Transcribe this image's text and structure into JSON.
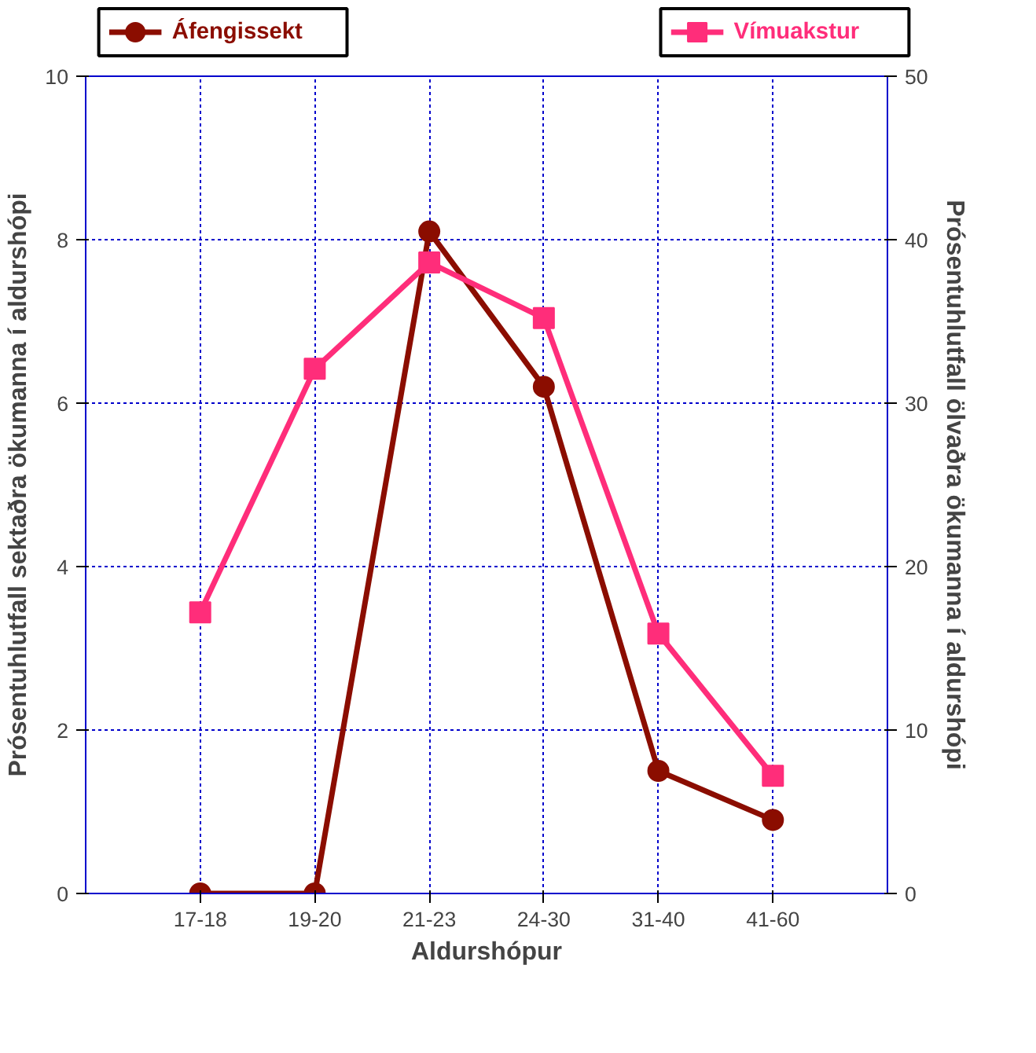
{
  "chart_data": {
    "type": "line",
    "categories": [
      "17-18",
      "19-20",
      "21-23",
      "24-30",
      "31-40",
      "41-60"
    ],
    "xlabel": "Aldurshópur",
    "ylabel": "Prósentuhlutfall sektaðra ökumanna í aldurshópi",
    "y2label": "Prósentuhlutfall ölvaðra ökumanna í aldurshópi",
    "ylim": [
      0,
      10
    ],
    "yticks": [
      0,
      2,
      4,
      6,
      8,
      10
    ],
    "y2lim": [
      0,
      50
    ],
    "y2ticks": [
      0,
      10,
      20,
      30,
      40,
      50
    ],
    "grid": true,
    "legend": "top",
    "line_style": "solid",
    "series": [
      {
        "name": "Áfengissekt",
        "color": "#8b0d00",
        "marker": "circle",
        "values": [
          0,
          0,
          8.1,
          6.2,
          1.5,
          0.9
        ]
      },
      {
        "name": "Vímuakstur",
        "color": "#ff2d7a",
        "marker": "square",
        "axis": "y2",
        "values": [
          17.2,
          32.1,
          38.6,
          35.2,
          15.9,
          7.2
        ]
      }
    ]
  }
}
